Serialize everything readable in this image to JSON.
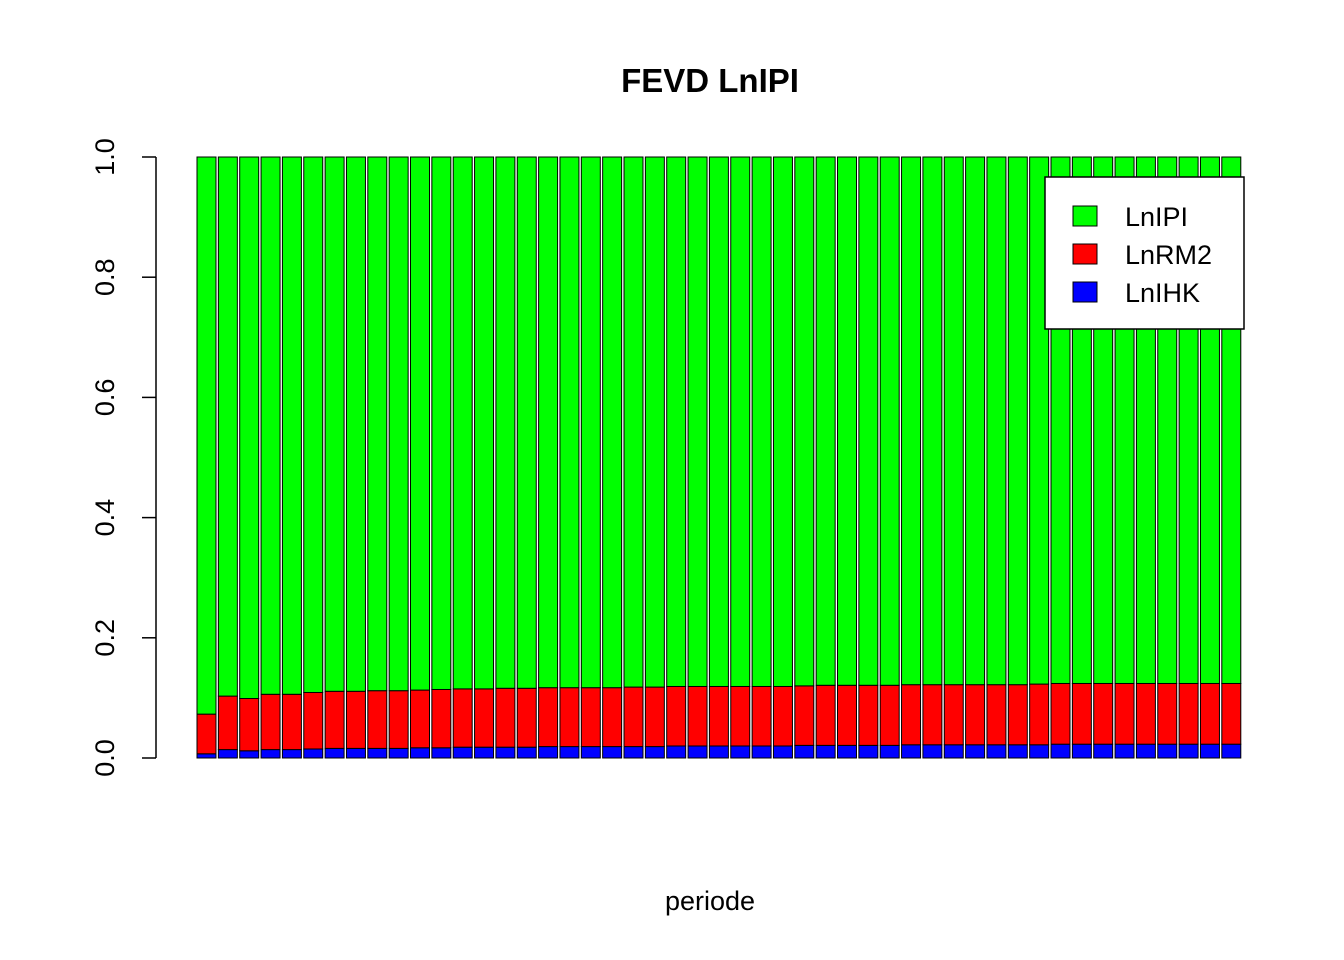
{
  "chart_data": {
    "type": "bar",
    "stacked": true,
    "title": "FEVD LnIPI",
    "xlabel": "periode",
    "ylabel": "",
    "ylim": [
      0,
      1
    ],
    "yticks": [
      "0.0",
      "0.2",
      "0.4",
      "0.6",
      "0.8",
      "1.0"
    ],
    "legend_position": "top-right",
    "series_order_bottom_to_top": [
      "LnIHK",
      "LnRM2",
      "LnIPI"
    ],
    "series": [
      {
        "name": "LnIHK",
        "color": "#0000ff",
        "values": [
          0.007,
          0.014,
          0.012,
          0.014,
          0.014,
          0.015,
          0.016,
          0.016,
          0.016,
          0.016,
          0.017,
          0.017,
          0.018,
          0.018,
          0.018,
          0.018,
          0.019,
          0.019,
          0.019,
          0.019,
          0.019,
          0.019,
          0.02,
          0.02,
          0.02,
          0.02,
          0.02,
          0.02,
          0.021,
          0.021,
          0.021,
          0.021,
          0.021,
          0.022,
          0.022,
          0.022,
          0.022,
          0.022,
          0.022,
          0.022,
          0.023,
          0.023,
          0.023,
          0.023,
          0.023,
          0.023,
          0.023,
          0.023,
          0.023
        ]
      },
      {
        "name": "LnRM2",
        "color": "#ff0000",
        "values": [
          0.066,
          0.089,
          0.087,
          0.092,
          0.092,
          0.094,
          0.095,
          0.095,
          0.096,
          0.096,
          0.096,
          0.097,
          0.097,
          0.097,
          0.098,
          0.098,
          0.098,
          0.098,
          0.098,
          0.098,
          0.099,
          0.099,
          0.099,
          0.099,
          0.099,
          0.099,
          0.099,
          0.099,
          0.099,
          0.1,
          0.1,
          0.1,
          0.1,
          0.1,
          0.1,
          0.1,
          0.1,
          0.1,
          0.1,
          0.101,
          0.101,
          0.101,
          0.101,
          0.101,
          0.101,
          0.101,
          0.101,
          0.101,
          0.101
        ]
      },
      {
        "name": "LnIPI",
        "color": "#00ff00",
        "values": [
          0.927,
          0.897,
          0.901,
          0.894,
          0.894,
          0.891,
          0.889,
          0.889,
          0.888,
          0.888,
          0.887,
          0.886,
          0.885,
          0.885,
          0.884,
          0.884,
          0.883,
          0.883,
          0.883,
          0.883,
          0.882,
          0.882,
          0.881,
          0.881,
          0.881,
          0.881,
          0.881,
          0.881,
          0.88,
          0.879,
          0.879,
          0.879,
          0.879,
          0.878,
          0.878,
          0.878,
          0.878,
          0.878,
          0.878,
          0.877,
          0.876,
          0.876,
          0.876,
          0.876,
          0.876,
          0.876,
          0.876,
          0.876,
          0.876
        ]
      }
    ]
  }
}
